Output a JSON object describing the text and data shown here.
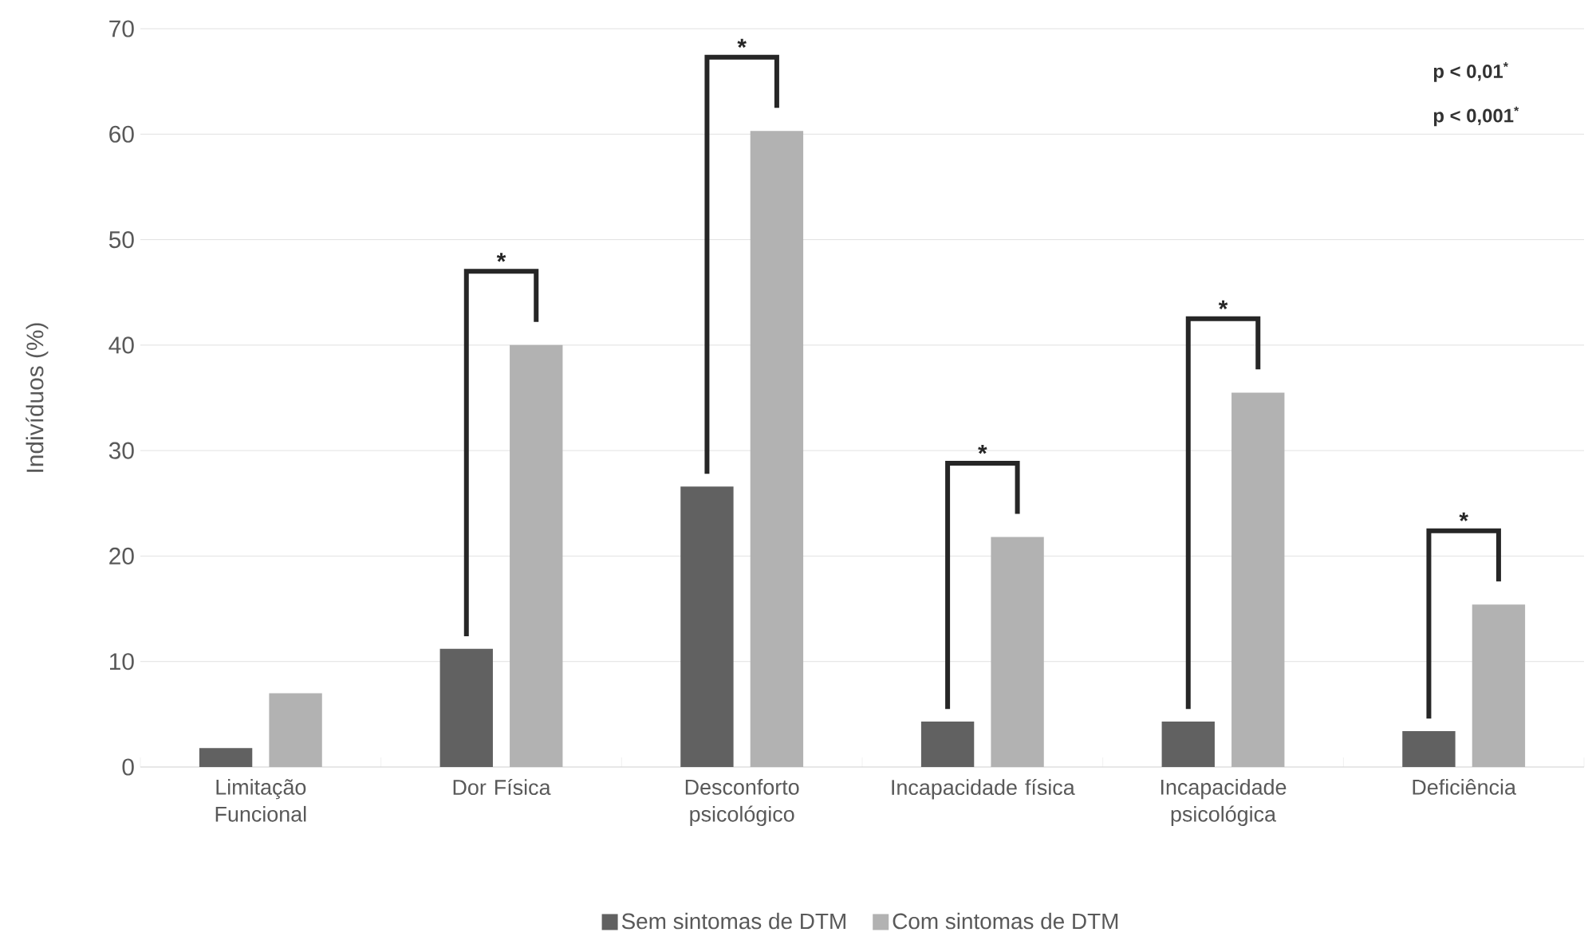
{
  "chart_data": {
    "type": "bar",
    "ylabel": "Indivíduos (%)",
    "categories": [
      "Limitação Funcional",
      "Dor Física",
      "Desconforto psicológico",
      "Incapacidade física",
      "Incapacidade psicológica",
      "Deficiência"
    ],
    "series": [
      {
        "name": "Sem sintomas de DTM",
        "color": "#616161",
        "values": [
          1.8,
          11.2,
          26.6,
          4.3,
          4.3,
          3.4
        ]
      },
      {
        "name": "Com sintomas de DTM",
        "color": "#b2b2b2",
        "values": [
          7.0,
          40.0,
          60.3,
          21.8,
          35.5,
          15.4
        ]
      }
    ],
    "ylim": [
      0,
      70
    ],
    "yticks": [
      0,
      10,
      20,
      30,
      40,
      50,
      60,
      70
    ],
    "grid": "y",
    "legend": "bottom",
    "annotations": [
      "*",
      "*",
      "*",
      "*",
      "*",
      "p < 0,01$^{*}$",
      "p < 0,001$^{*}$"
    ]
  }
}
